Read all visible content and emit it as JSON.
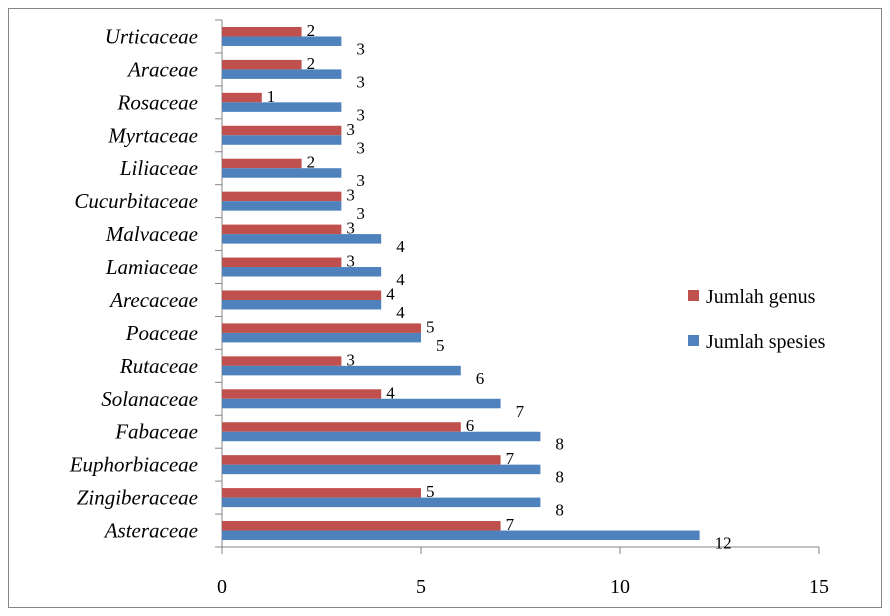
{
  "chart_data": {
    "type": "bar",
    "orientation": "horizontal",
    "categories": [
      "Asteraceae",
      "Zingiberaceae",
      "Euphorbiaceae",
      "Fabaceae",
      "Solanaceae",
      "Rutaceae",
      "Poaceae",
      "Arecaceae",
      "Lamiaceae",
      "Malvaceae",
      "Cucurbitaceae",
      "Liliaceae",
      "Myrtaceae",
      "Rosaceae",
      "Araceae",
      "Urticaceae"
    ],
    "series": [
      {
        "name": "Jumlah genus",
        "color": "#c0504d",
        "values": [
          7,
          5,
          7,
          6,
          4,
          3,
          5,
          4,
          3,
          3,
          3,
          2,
          3,
          1,
          2,
          2
        ]
      },
      {
        "name": "Jumlah spesies",
        "color": "#4f81bd",
        "values": [
          12,
          8,
          8,
          8,
          7,
          6,
          5,
          4,
          4,
          4,
          3,
          3,
          3,
          3,
          3,
          3
        ]
      }
    ],
    "xlim": [
      0,
      15
    ],
    "xticks": [
      "0",
      "5",
      "10",
      "15"
    ],
    "data_labels": true,
    "grid": false,
    "legend_position": "right"
  }
}
